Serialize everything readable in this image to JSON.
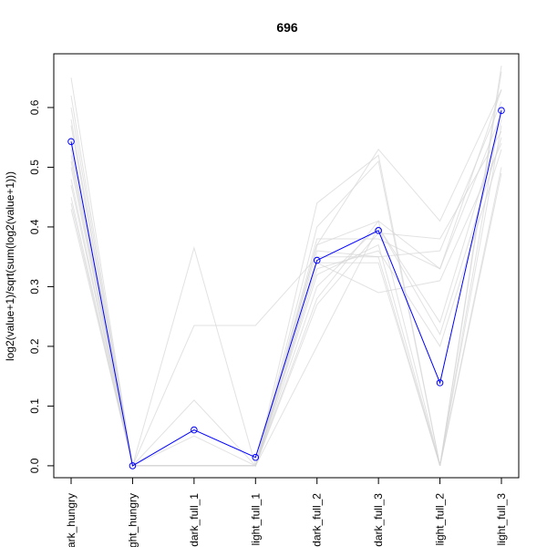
{
  "chart_data": {
    "type": "line",
    "title": "696",
    "xlabel": "",
    "ylabel": "log2(value+1)/sqrt(sum(log2(value+1)))",
    "categories": [
      "dark_hungry",
      "light_hungry",
      "dark_full_1",
      "light_full_1",
      "dark_full_2",
      "dark_full_3",
      "light_full_2",
      "light_full_3"
    ],
    "ylim": [
      -0.02,
      0.69
    ],
    "yticks": [
      0.0,
      0.1,
      0.2,
      0.3,
      0.4,
      0.5,
      0.6
    ],
    "ytick_labels": [
      "0.0",
      "0.1",
      "0.2",
      "0.3",
      "0.4",
      "0.5",
      "0.6"
    ],
    "highlight_color": "#0000ff",
    "background_color": "#d6d6d6",
    "highlight_series": {
      "values": [
        0.543,
        0.0,
        0.06,
        0.014,
        0.344,
        0.394,
        0.139,
        0.595
      ]
    },
    "background_series": [
      {
        "values": [
          0.65,
          0.0,
          0.0,
          0.0,
          0.44,
          0.52,
          0.0,
          0.67
        ]
      },
      {
        "values": [
          0.62,
          0.0,
          0.0,
          0.0,
          0.4,
          0.51,
          0.0,
          0.66
        ]
      },
      {
        "values": [
          0.6,
          0.0,
          0.365,
          0.0,
          0.37,
          0.53,
          0.41,
          0.63
        ]
      },
      {
        "values": [
          0.58,
          0.0,
          0.0,
          0.0,
          0.38,
          0.38,
          0.33,
          0.63
        ]
      },
      {
        "values": [
          0.57,
          0.0,
          0.235,
          0.235,
          0.35,
          0.35,
          0.36,
          0.61
        ]
      },
      {
        "values": [
          0.55,
          0.0,
          0.0,
          0.0,
          0.32,
          0.37,
          0.0,
          0.6
        ]
      },
      {
        "values": [
          0.53,
          0.0,
          0.11,
          0.0,
          0.3,
          0.4,
          0.24,
          0.58
        ]
      },
      {
        "values": [
          0.51,
          0.0,
          0.0,
          0.0,
          0.28,
          0.41,
          0.0,
          0.57
        ]
      },
      {
        "values": [
          0.5,
          0.0,
          0.0,
          0.0,
          0.27,
          0.39,
          0.38,
          0.56
        ]
      },
      {
        "values": [
          0.48,
          0.0,
          0.05,
          0.0,
          0.2,
          0.4,
          0.22,
          0.55
        ]
      },
      {
        "values": [
          0.47,
          0.0,
          0.0,
          0.0,
          0.34,
          0.29,
          0.31,
          0.54
        ]
      },
      {
        "values": [
          0.45,
          0.0,
          0.0,
          0.0,
          0.34,
          0.34,
          0.0,
          0.5
        ]
      },
      {
        "values": [
          0.44,
          0.0,
          0.0,
          0.0,
          0.33,
          0.36,
          0.2,
          0.53
        ]
      },
      {
        "values": [
          0.43,
          0.0,
          0.0,
          0.0,
          0.36,
          0.35,
          0.0,
          0.49
        ]
      },
      {
        "values": [
          0.52,
          0.0,
          0.0,
          0.0,
          0.37,
          0.41,
          0.33,
          0.59
        ]
      }
    ]
  }
}
